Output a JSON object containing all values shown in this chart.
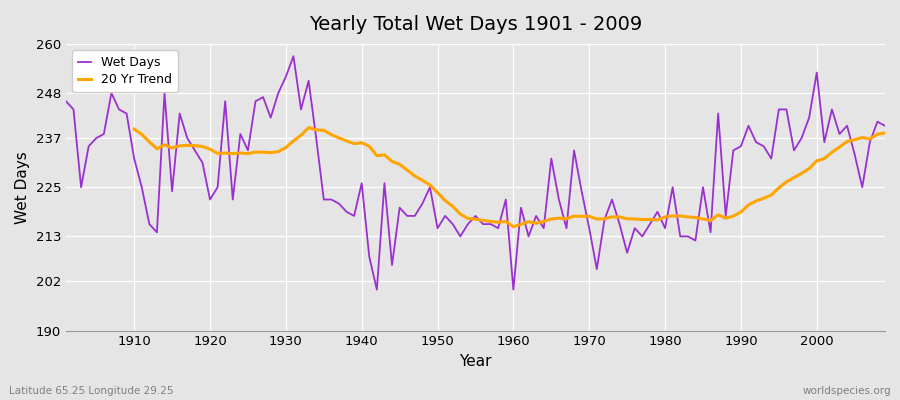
{
  "title": "Yearly Total Wet Days 1901 - 2009",
  "xlabel": "Year",
  "ylabel": "Wet Days",
  "xlim": [
    1901,
    2009
  ],
  "ylim": [
    190,
    260
  ],
  "yticks": [
    190,
    202,
    213,
    225,
    237,
    248,
    260
  ],
  "xticks": [
    1910,
    1920,
    1930,
    1940,
    1950,
    1960,
    1970,
    1980,
    1990,
    2000
  ],
  "wet_days_color": "#9B30D0",
  "trend_color": "#FFA500",
  "background_color": "#E5E5E5",
  "legend_labels": [
    "Wet Days",
    "20 Yr Trend"
  ],
  "subtitle_left": "Latitude 65.25 Longitude 29.25",
  "subtitle_right": "worldspecies.org",
  "wet_days": [
    246,
    244,
    225,
    235,
    237,
    238,
    248,
    244,
    243,
    232,
    225,
    216,
    214,
    248,
    224,
    243,
    237,
    234,
    231,
    222,
    225,
    246,
    222,
    238,
    234,
    246,
    247,
    242,
    248,
    252,
    257,
    244,
    251,
    237,
    222,
    222,
    221,
    219,
    218,
    226,
    208,
    200,
    226,
    206,
    220,
    218,
    218,
    221,
    225,
    215,
    218,
    216,
    213,
    216,
    218,
    216,
    216,
    215,
    222,
    200,
    220,
    213,
    218,
    215,
    232,
    222,
    215,
    234,
    224,
    215,
    205,
    217,
    222,
    216,
    209,
    215,
    213,
    216,
    219,
    215,
    225,
    213,
    213,
    212,
    225,
    214,
    243,
    218,
    234,
    235,
    240,
    236,
    235,
    232,
    244,
    244,
    234,
    237,
    242,
    253,
    236,
    244,
    238,
    240,
    233,
    225,
    236,
    241,
    240
  ],
  "years": [
    1901,
    1902,
    1903,
    1904,
    1905,
    1906,
    1907,
    1908,
    1909,
    1910,
    1911,
    1912,
    1913,
    1914,
    1915,
    1916,
    1917,
    1918,
    1919,
    1920,
    1921,
    1922,
    1923,
    1924,
    1925,
    1926,
    1927,
    1928,
    1929,
    1930,
    1931,
    1932,
    1933,
    1934,
    1935,
    1936,
    1937,
    1938,
    1939,
    1940,
    1941,
    1942,
    1943,
    1944,
    1945,
    1946,
    1947,
    1948,
    1949,
    1950,
    1951,
    1952,
    1953,
    1954,
    1955,
    1956,
    1957,
    1958,
    1959,
    1960,
    1961,
    1962,
    1963,
    1964,
    1965,
    1966,
    1967,
    1968,
    1969,
    1970,
    1971,
    1972,
    1973,
    1974,
    1975,
    1976,
    1977,
    1978,
    1979,
    1980,
    1981,
    1982,
    1983,
    1984,
    1985,
    1986,
    1987,
    1988,
    1989,
    1990,
    1991,
    1992,
    1993,
    1994,
    1995,
    1996,
    1997,
    1998,
    1999,
    2000,
    2001,
    2002,
    2003,
    2004,
    2005,
    2006,
    2007,
    2008,
    2009
  ]
}
